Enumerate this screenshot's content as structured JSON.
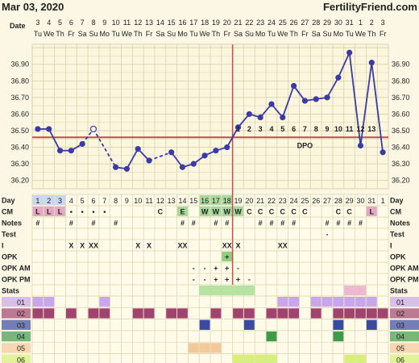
{
  "header": {
    "date": "Mar 03, 2020",
    "brand": "FertilityFriend.com"
  },
  "row_labels": {
    "date": "Date",
    "day": "Day",
    "cm": "CM",
    "notes": "Notes",
    "test": "Test",
    "i": "I",
    "opk": "OPK",
    "opk_am": "OPK AM",
    "opk_pm": "OPK PM",
    "stats": "Stats",
    "stat_rows": [
      "01",
      "02",
      "03",
      "04",
      "05",
      "06"
    ]
  },
  "colors": {
    "background": "#fbf7e4",
    "grid": "#d9d2ac",
    "line": "#3a3aa8",
    "coverline": "#c44d4d",
    "period": "#e3a9c3",
    "fertile": "#a6d99b",
    "ovulation_marker": "#c44d4d",
    "s01": "#c9a6ea",
    "s02": "#a1436f",
    "s03": "#3b4aa1",
    "s04": "#3f9b4b",
    "s05": "#f3c99b",
    "s06": "#d6f07a",
    "stats_green": "#b5e3a4",
    "stats_pink": "#f0b8cf"
  },
  "chart_data": {
    "type": "line",
    "title": "",
    "xlabel": "",
    "ylabel": "",
    "ylim": [
      36.15,
      37.02
    ],
    "yticks": [
      "36.20",
      "36.30",
      "36.40",
      "36.50",
      "36.60",
      "36.70",
      "36.80",
      "36.90"
    ],
    "dates": [
      "3",
      "4",
      "5",
      "6",
      "7",
      "8",
      "9",
      "10",
      "11",
      "12",
      "13",
      "14",
      "15",
      "16",
      "17",
      "18",
      "19",
      "20",
      "21",
      "22",
      "23",
      "24",
      "25",
      "26",
      "27",
      "28",
      "29",
      "30",
      "31",
      "1",
      "2",
      "3"
    ],
    "weekdays": [
      "Tu",
      "We",
      "Th",
      "Fr",
      "Sa",
      "Su",
      "Mo",
      "Tu",
      "We",
      "Th",
      "Fr",
      "Sa",
      "Su",
      "Mo",
      "Tu",
      "We",
      "Th",
      "Fr",
      "Sa",
      "Su",
      "Mo",
      "Tu",
      "We",
      "Th",
      "Fr",
      "Sa",
      "Su",
      "Mo",
      "Tu",
      "We",
      "Th",
      "Fr"
    ],
    "days": [
      "1",
      "2",
      "3",
      "4",
      "5",
      "6",
      "7",
      "8",
      "9",
      "10",
      "11",
      "12",
      "13",
      "14",
      "15",
      "16",
      "17",
      "18",
      "19",
      "20",
      "21",
      "22",
      "23",
      "24",
      "25",
      "26",
      "27",
      "28",
      "29",
      "30",
      "31",
      "1"
    ],
    "temps": [
      36.51,
      36.51,
      36.38,
      36.38,
      36.42,
      36.51,
      null,
      36.28,
      36.27,
      36.39,
      36.32,
      null,
      36.37,
      36.28,
      36.3,
      36.35,
      36.38,
      36.4,
      36.52,
      36.6,
      36.58,
      36.66,
      36.58,
      36.77,
      36.68,
      36.69,
      36.7,
      36.82,
      36.97,
      36.41,
      36.91,
      36.37
    ],
    "open_point_index": 5,
    "coverline": 36.46,
    "ovulation_after_index": 17,
    "dpo_labels": [
      "1",
      "2",
      "3",
      "4",
      "5",
      "6",
      "7",
      "8",
      "9",
      "10",
      "11",
      "12",
      "13"
    ],
    "dpo_start_index": 18,
    "dpo_text": "DPO"
  },
  "rows": {
    "cm": [
      "L",
      "L",
      "L",
      "•",
      "•",
      "•",
      "•",
      "",
      "",
      "",
      "",
      "C",
      "",
      "E",
      "",
      "W",
      "W",
      "W",
      "W",
      "C",
      "C",
      "C",
      "C",
      "C",
      "C",
      "",
      "",
      "C",
      "C",
      "",
      "L",
      ""
    ],
    "notes": [
      "#",
      "",
      "",
      "#",
      "",
      "#",
      "",
      "#",
      "",
      "",
      "",
      "",
      "",
      "#",
      "#",
      "",
      "#",
      "#",
      "",
      "",
      "#",
      "#",
      "#",
      "#",
      "",
      "",
      "#",
      "#",
      "#",
      "#",
      "",
      ""
    ],
    "test": [
      "",
      "",
      "",
      "",
      "",
      "",
      "",
      "",
      "",
      "",
      "",
      "",
      "",
      "",
      "",
      "",
      "",
      "",
      "",
      "",
      "",
      "",
      "",
      "",
      "",
      "",
      "-",
      "",
      "",
      "",
      "",
      ""
    ],
    "i": [
      "",
      "",
      "",
      "X",
      "X",
      "XX",
      "",
      "",
      "",
      "X",
      "X",
      "",
      "",
      "XX",
      "",
      "",
      "",
      "XX",
      "X",
      "",
      "",
      "",
      "XX",
      "",
      "",
      "",
      "",
      "",
      "",
      "",
      "",
      ""
    ],
    "opk": [
      "",
      "",
      "",
      "",
      "",
      "",
      "",
      "",
      "",
      "",
      "",
      "",
      "",
      "",
      "",
      "",
      "",
      "+",
      "",
      "",
      "",
      "",
      "",
      "",
      "",
      "",
      "",
      "",
      "",
      "",
      "",
      ""
    ],
    "opk_am": [
      "",
      "",
      "",
      "",
      "",
      "",
      "",
      "",
      "",
      "",
      "",
      "",
      "",
      "",
      "-",
      "-",
      "+",
      "+",
      "-",
      "",
      "",
      "",
      "",
      "",
      "",
      "",
      "",
      "",
      "",
      "",
      "",
      ""
    ],
    "opk_pm": [
      "",
      "",
      "",
      "",
      "",
      "",
      "",
      "",
      "",
      "",
      "",
      "",
      "",
      "",
      "-",
      "-",
      "+",
      "+",
      "+",
      "-",
      "",
      "",
      "",
      "",
      "",
      "",
      "",
      "",
      "",
      "",
      "",
      ""
    ]
  },
  "stats_bars": [
    {
      "row": "stats",
      "start": 15,
      "end": 19,
      "color": "stats_green"
    },
    {
      "row": "stats",
      "start": 28,
      "end": 29,
      "color": "stats_pink"
    }
  ],
  "stat_cells": {
    "01": [
      0,
      1,
      6,
      22,
      23,
      25,
      26,
      27,
      28,
      29,
      30
    ],
    "02": [
      0,
      1,
      3,
      5,
      6,
      9,
      10,
      12,
      13,
      16,
      18,
      19,
      21,
      22,
      23,
      25,
      27,
      28,
      29,
      30,
      31
    ],
    "03": [
      15,
      19,
      27,
      30
    ],
    "04": [
      21,
      27
    ],
    "05": [
      14,
      15,
      16
    ],
    "06": [
      18,
      19,
      20,
      21,
      28,
      29
    ]
  }
}
